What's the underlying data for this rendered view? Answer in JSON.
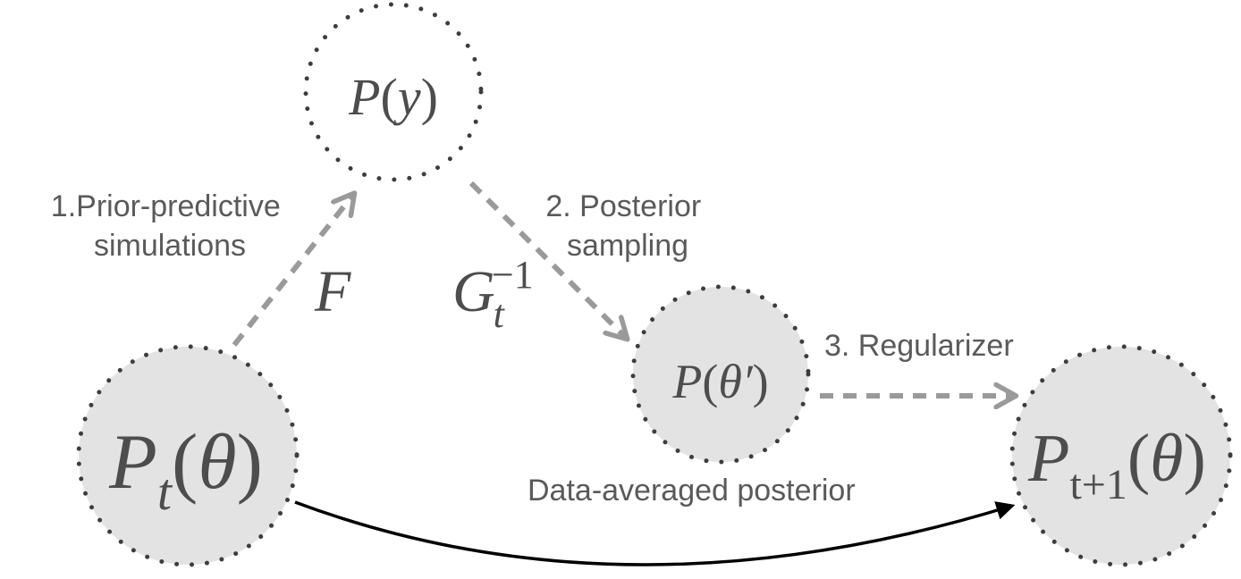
{
  "nodes": {
    "prior_predictive": {
      "symbol": "P",
      "open": "(",
      "var": "y",
      "close": ")"
    },
    "current_prior": {
      "symbol": "P",
      "subscript": "t",
      "open": "(",
      "var": "θ",
      "close": ")"
    },
    "data_averaged_posterior": {
      "symbol": "P",
      "open": "(",
      "var": "θ′",
      "close": ")"
    },
    "next_prior": {
      "symbol": "P",
      "subscript": "t+1",
      "open": "(",
      "var": "θ",
      "close": ")"
    }
  },
  "edges": {
    "forward": {
      "label_line1": "1.Prior-predictive",
      "label_line2": "simulations",
      "operator": "F"
    },
    "inverse": {
      "label_line1": "2. Posterior",
      "label_line2": "sampling",
      "operator": "G",
      "operator_sub": "t",
      "operator_sup": "−1"
    },
    "regularizer": {
      "label": "3. Regularizer"
    },
    "caption": {
      "label": "Data-averaged posterior"
    }
  },
  "colors": {
    "node_fill": "#e3e3e3",
    "node_border": "#3d3d3d",
    "dashed_arrow": "#9a9a9a",
    "solid_arrow": "#000000",
    "text": "#5a5a5a"
  }
}
